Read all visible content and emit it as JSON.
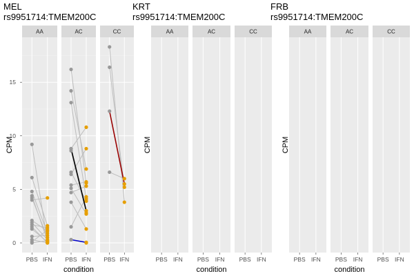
{
  "chart_data": [
    {
      "type": "scatter",
      "title_line1": "MEL",
      "title_line2": "rs9951714:TMEM200C",
      "ylabel": "CPM",
      "xlabel": "condition",
      "y_ticks": [
        0,
        5,
        10,
        15
      ],
      "ylim": [
        -0.9,
        19.2
      ],
      "x_categories": [
        "PBS",
        "IFN"
      ],
      "colors": {
        "PBS": "#999999",
        "IFN": "#E69F00",
        "line": "#bdbdbd"
      },
      "facets": [
        {
          "genotype": "AA",
          "pairs": [
            [
              9.2,
              0.1
            ],
            [
              6.1,
              1.6
            ],
            [
              4.8,
              0.9
            ],
            [
              4.4,
              0.2
            ],
            [
              4.2,
              0.5
            ],
            [
              4.0,
              4.2
            ],
            [
              2.1,
              1.1
            ],
            [
              1.9,
              0.3
            ],
            [
              1.7,
              1.4
            ],
            [
              1.5,
              0.0
            ],
            [
              1.3,
              0.1
            ],
            [
              0.6,
              0.7
            ],
            [
              0.3,
              0.0
            ],
            [
              0.1,
              1.2
            ],
            [
              0.0,
              0.2
            ]
          ],
          "highlighted": []
        },
        {
          "genotype": "AC",
          "pairs": [
            [
              16.2,
              5.6
            ],
            [
              14.2,
              6.9
            ],
            [
              13.1,
              4.1
            ],
            [
              8.8,
              10.8
            ],
            [
              8.6,
              2.8
            ],
            [
              6.6,
              3.9
            ],
            [
              6.4,
              8.8
            ],
            [
              5.4,
              5.7
            ],
            [
              5.1,
              2.7
            ],
            [
              4.7,
              5.3
            ],
            [
              3.8,
              1.3
            ],
            [
              1.5,
              4.3
            ],
            [
              0.3,
              0.0
            ]
          ],
          "highlighted": [
            {
              "pbs": 8.8,
              "ifn": 3.0,
              "color": "#000000"
            },
            {
              "pbs": 0.3,
              "ifn": 0.05,
              "color": "#0000cc"
            }
          ]
        },
        {
          "genotype": "CC",
          "pairs": [
            [
              18.3,
              3.8
            ],
            [
              16.4,
              5.2
            ],
            [
              6.6,
              6.0
            ]
          ],
          "highlighted": [
            {
              "pbs": 12.3,
              "ifn": 5.5,
              "color": "#990000"
            }
          ]
        }
      ]
    },
    {
      "type": "scatter",
      "title_line1": "KRT",
      "title_line2": "rs9951714:TMEM200C",
      "ylabel": "CPM",
      "xlabel": "condition",
      "x_categories": [
        "PBS",
        "IFN"
      ],
      "facets": [
        {
          "genotype": "AA",
          "pairs": [],
          "highlighted": []
        },
        {
          "genotype": "AC",
          "pairs": [],
          "highlighted": []
        },
        {
          "genotype": "CC",
          "pairs": [],
          "highlighted": []
        }
      ]
    },
    {
      "type": "scatter",
      "title_line1": "FRB",
      "title_line2": "rs9951714:TMEM200C",
      "ylabel": "CPM",
      "xlabel": "condition",
      "x_categories": [
        "PBS",
        "IFN"
      ],
      "facets": [
        {
          "genotype": "AA",
          "pairs": [],
          "highlighted": []
        },
        {
          "genotype": "AC",
          "pairs": [],
          "highlighted": []
        },
        {
          "genotype": "CC",
          "pairs": [],
          "highlighted": []
        }
      ]
    }
  ]
}
